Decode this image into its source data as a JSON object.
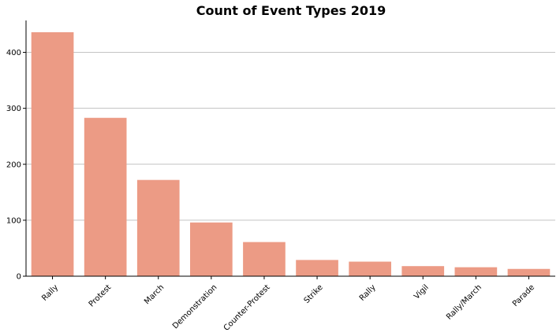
{
  "chart_data": {
    "type": "bar",
    "title": "Count of Event Types 2019",
    "xlabel": "",
    "ylabel": "",
    "categories": [
      "Rally",
      "Protest",
      "March",
      "Demonstration",
      "Counter-Protest",
      "Strike",
      "Rally",
      "Vigil",
      "Rally/March",
      "Parade"
    ],
    "values": [
      436,
      283,
      172,
      96,
      61,
      29,
      26,
      18,
      16,
      13
    ],
    "ylim": [
      0,
      457
    ],
    "yticks": [
      0,
      100,
      200,
      300,
      400
    ],
    "grid": "y",
    "bar_color": "#ec9b85"
  }
}
